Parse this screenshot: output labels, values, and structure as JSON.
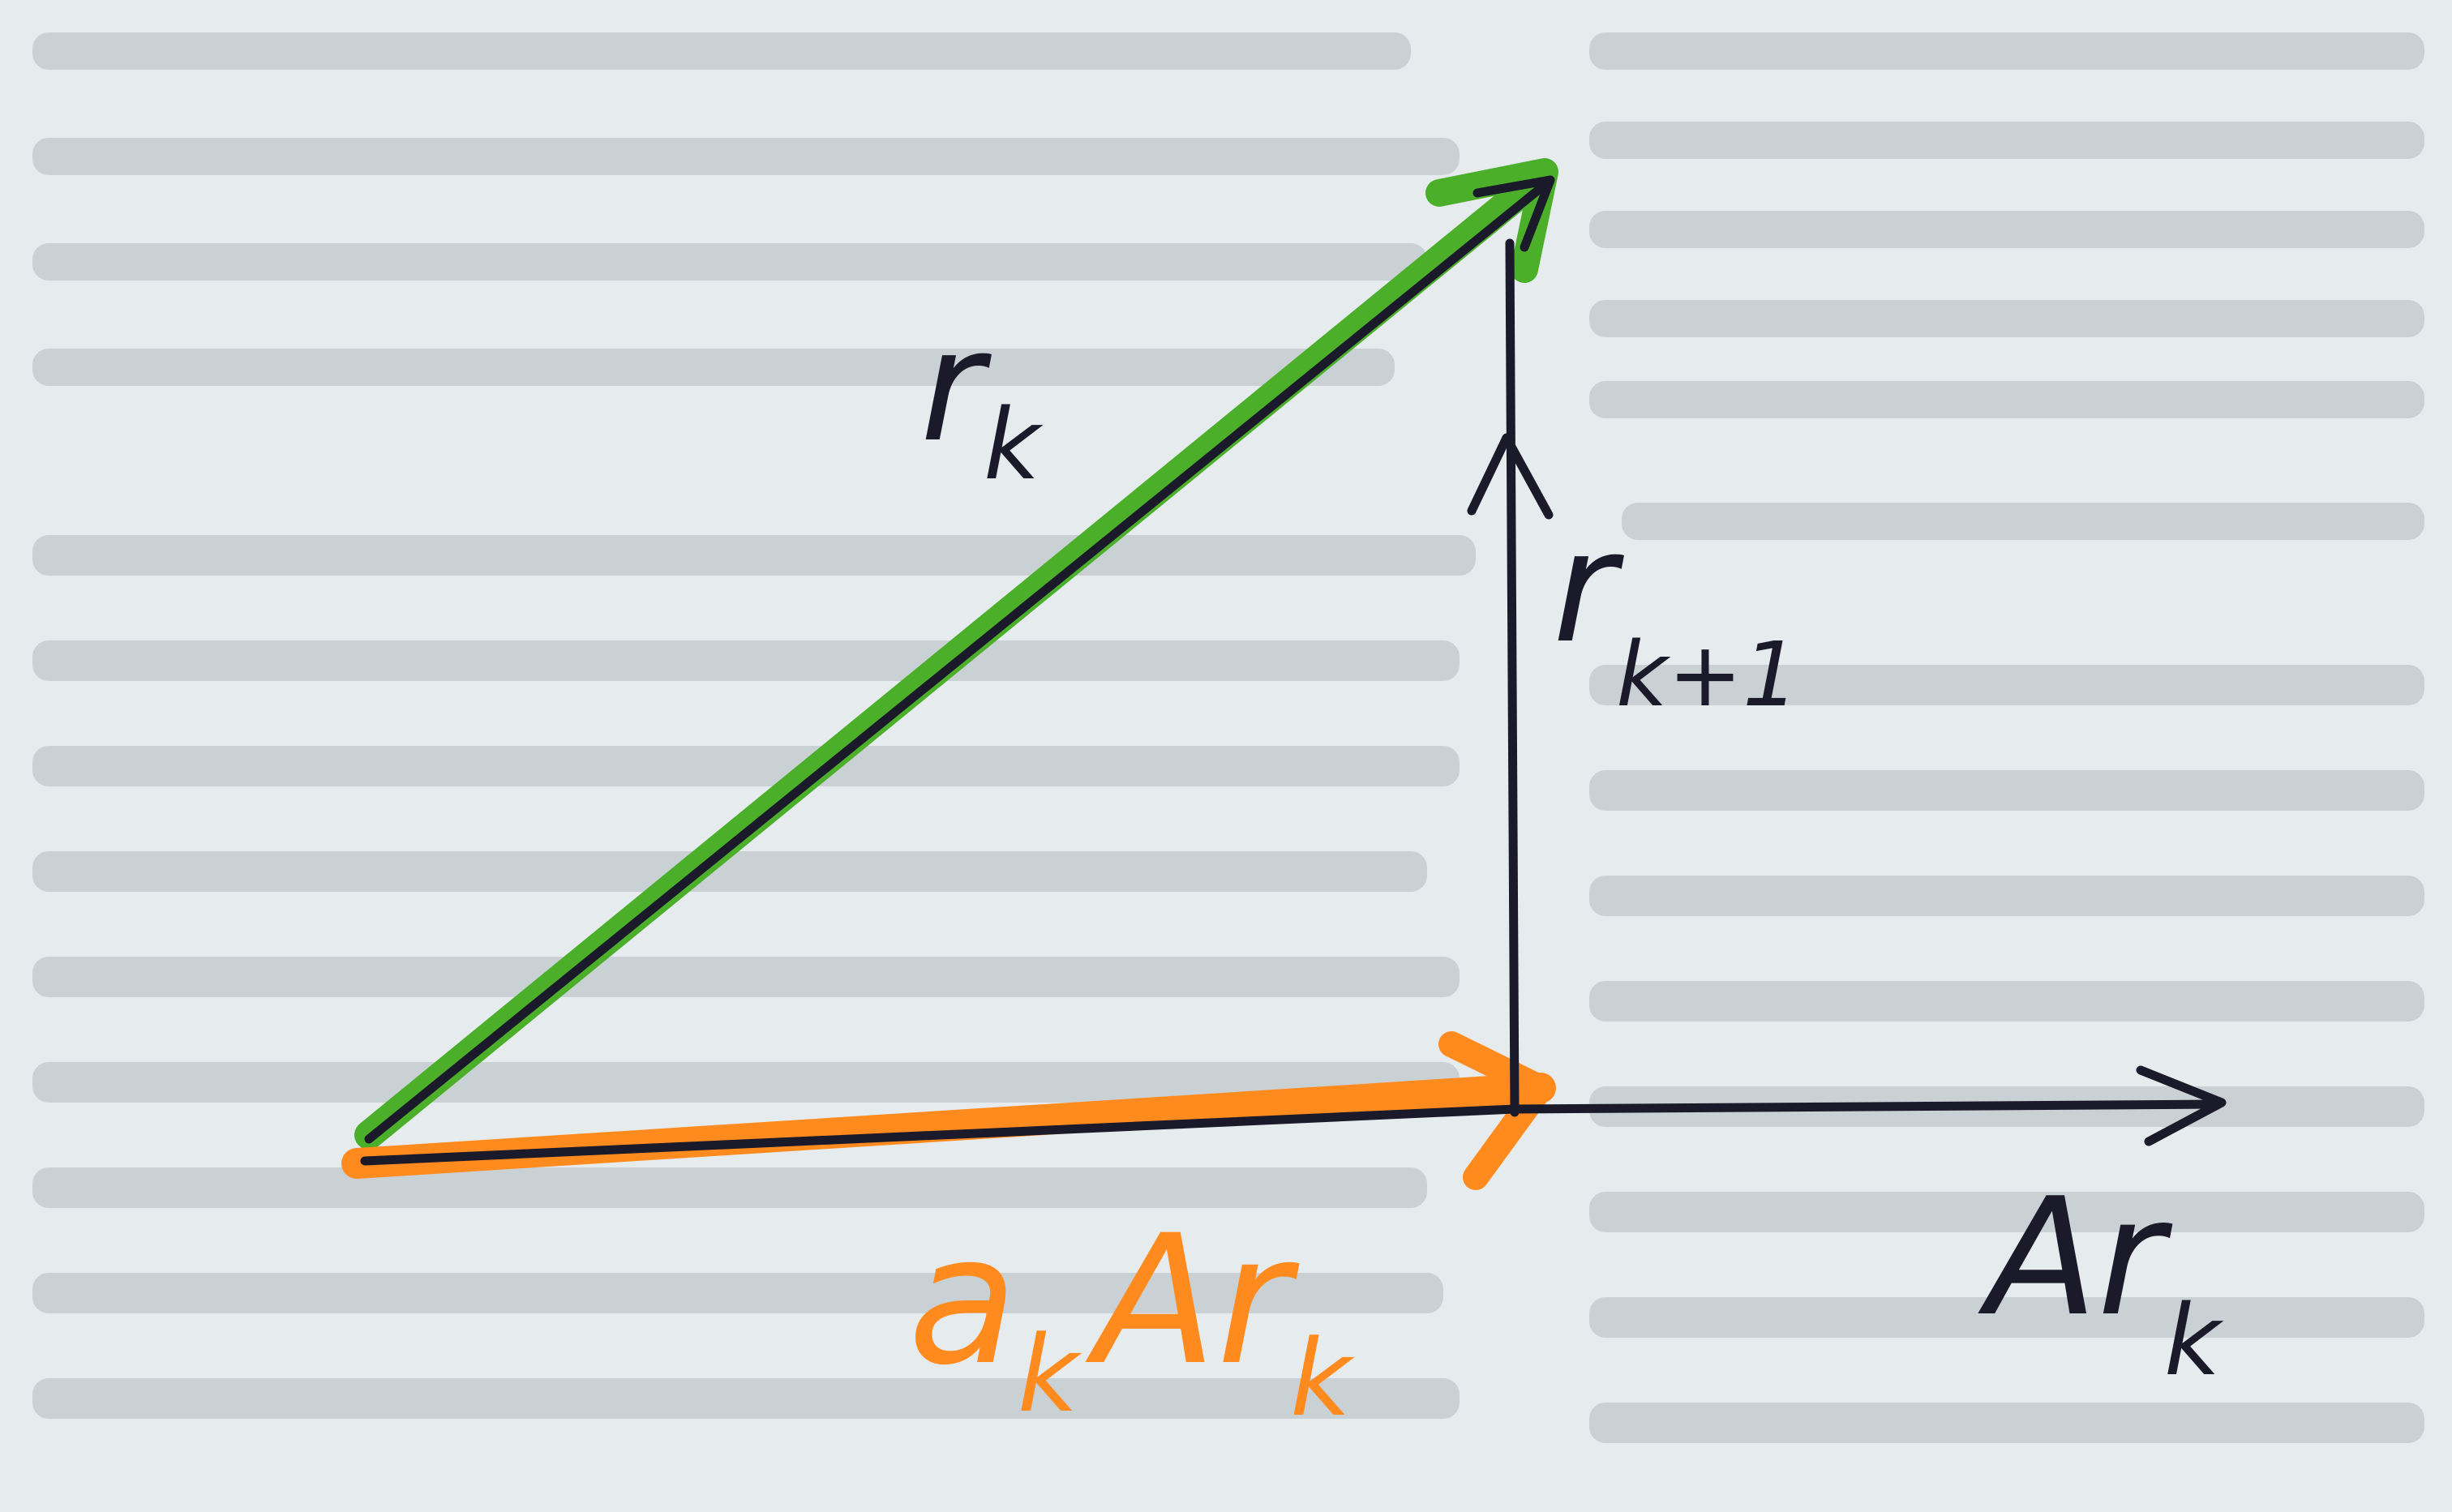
{
  "diagram": {
    "vectors": {
      "r_k": {
        "base": "r",
        "subscript": "k",
        "color": "#4caf2a"
      },
      "r_k_plus_1": {
        "base": "r",
        "subscript": "k+1",
        "color": "#1a1a2a"
      },
      "alpha_k_A_r_k": {
        "coefficient": "a",
        "coefficient_subscript": "k",
        "base": "Ar",
        "subscript": "k",
        "color": "#ff8a1e"
      },
      "A_r_k_axis": {
        "base": "Ar",
        "subscript": "k",
        "color": "#1a1a2a"
      }
    },
    "ink_color": "#1a1a2a",
    "paper_color": "#e6ecee"
  }
}
